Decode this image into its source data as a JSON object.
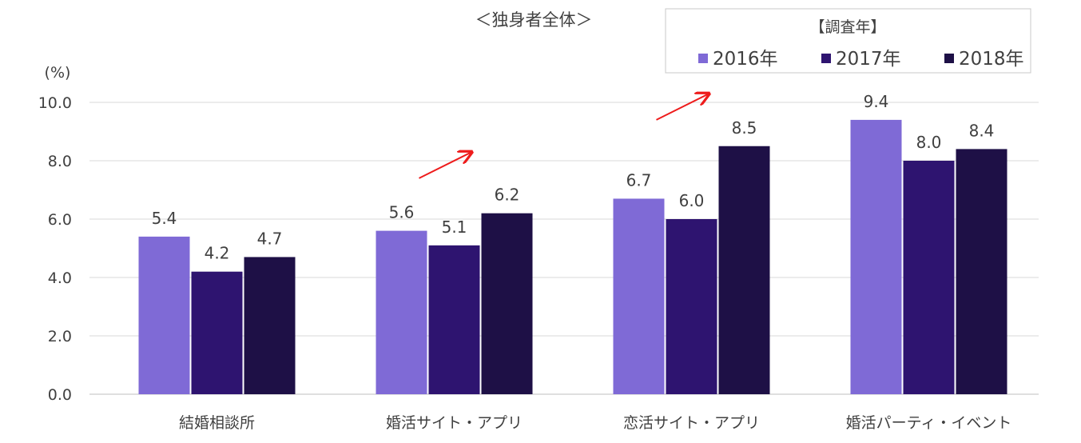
{
  "chart_data": {
    "type": "bar",
    "title": "＜独身者全体＞",
    "ylabel": "(%)",
    "ylim": [
      0,
      10
    ],
    "yticks": [
      "0.0",
      "2.0",
      "4.0",
      "6.0",
      "8.0",
      "10.0"
    ],
    "categories": [
      "結婚相談所",
      "婚活サイト・アプリ",
      "恋活サイト・アプリ",
      "婚活パーティ・イベント"
    ],
    "legend_title": "【調査年】",
    "legend_position": "top-right",
    "grid": true,
    "series": [
      {
        "name": "2016年",
        "color": "#7f6ad6",
        "values": [
          5.4,
          5.6,
          6.7,
          9.4
        ],
        "labels": [
          "5.4",
          "5.6",
          "6.7",
          "9.4"
        ]
      },
      {
        "name": "2017年",
        "color": "#2e1470",
        "values": [
          4.2,
          5.1,
          6.0,
          8.0
        ],
        "labels": [
          "4.2",
          "5.1",
          "6.0",
          "8.0"
        ]
      },
      {
        "name": "2018年",
        "color": "#1e1046",
        "values": [
          4.7,
          6.2,
          8.5,
          8.4
        ],
        "labels": [
          "4.7",
          "6.2",
          "8.5",
          "8.4"
        ]
      }
    ],
    "annotations": [
      {
        "type": "arrow",
        "color": "#ee1c1c",
        "category": "婚活サイト・アプリ",
        "from_value": 7.4,
        "to_value": 8.3
      },
      {
        "type": "arrow",
        "color": "#ee1c1c",
        "category": "恋活サイト・アプリ",
        "from_value": 9.4,
        "to_value": 10.3
      }
    ]
  }
}
